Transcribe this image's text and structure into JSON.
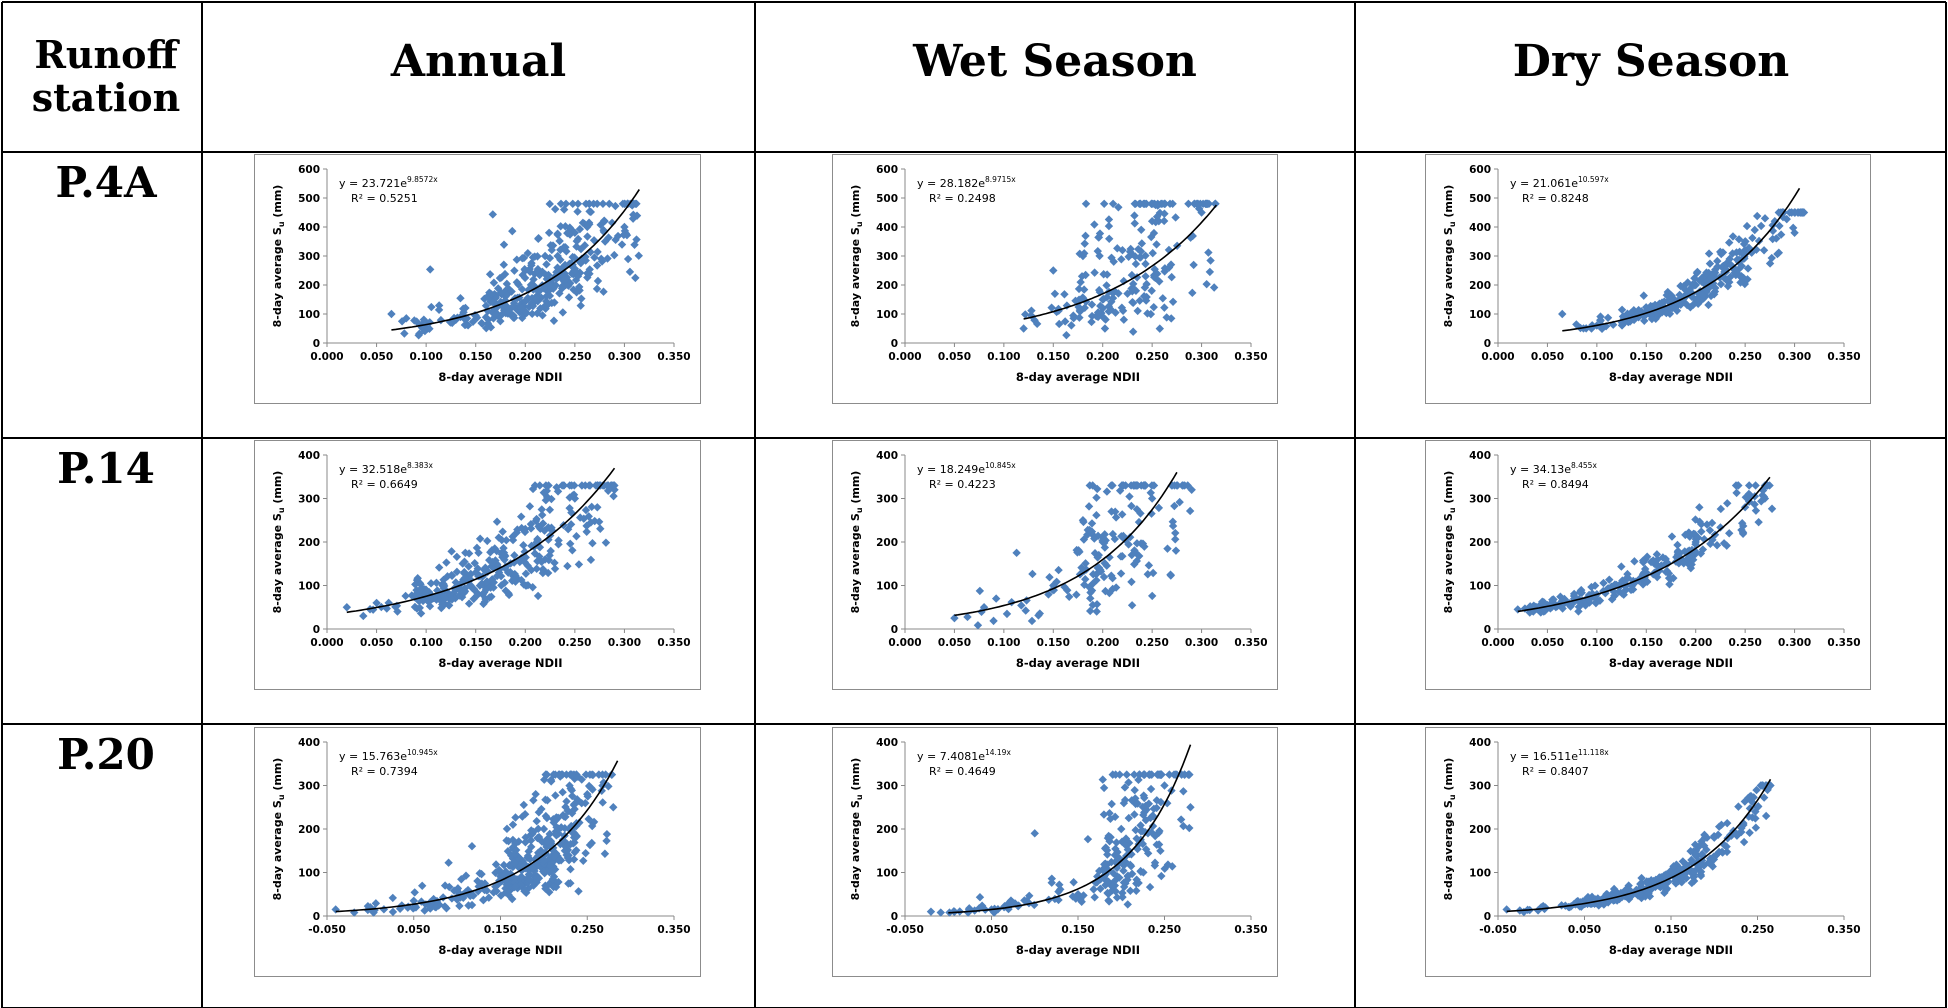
{
  "header": {
    "corner_line1": "Runoff",
    "corner_line2": "station",
    "columns": [
      "Annual",
      "Wet Season",
      "Dry Season"
    ]
  },
  "stations": [
    "P.4A",
    "P.14",
    "P.20"
  ],
  "colors": {
    "marker": "#4f81bd",
    "trend": "#000000",
    "grid_line": "#000000",
    "panel_border": "#8c8c8c"
  },
  "chart_data": [
    {
      "type": "scatter",
      "station": "P.4A",
      "season": "Annual",
      "xlabel": "8-day  average  NDII",
      "ylabel": "8-day  average  S_u (mm)",
      "xlim": [
        0,
        0.35
      ],
      "ylim": [
        0,
        600
      ],
      "xticks": [
        "0.000",
        "0.050",
        "0.100",
        "0.150",
        "0.200",
        "0.250",
        "0.300",
        "0.350"
      ],
      "yticks": [
        "0",
        "100",
        "200",
        "300",
        "400",
        "500",
        "600"
      ],
      "equation_prefix": "y = 23.721e",
      "equation_exp": "9.8572x",
      "r2": "R² = 0.5251",
      "trendline": {
        "a": 23.721,
        "b": 9.8572,
        "xrange": [
          0.065,
          0.315
        ]
      },
      "cloud": {
        "n": 360,
        "xrange": [
          0.065,
          0.315
        ],
        "x_center": 0.215,
        "ymax": 480,
        "spread": 0.36,
        "seed": 11
      },
      "points_sample": [
        [
          0.065,
          100
        ],
        [
          0.08,
          85
        ],
        [
          0.1,
          70
        ],
        [
          0.13,
          80
        ],
        [
          0.15,
          95
        ],
        [
          0.18,
          160
        ],
        [
          0.2,
          250
        ],
        [
          0.22,
          300
        ],
        [
          0.25,
          380
        ],
        [
          0.28,
          420
        ],
        [
          0.3,
          400
        ]
      ]
    },
    {
      "type": "scatter",
      "station": "P.4A",
      "season": "Wet Season",
      "xlabel": "8-day  average  NDII",
      "ylabel": "8-day  average  S_u (mm)",
      "xlim": [
        0,
        0.35
      ],
      "ylim": [
        0,
        600
      ],
      "xticks": [
        "0.000",
        "0.050",
        "0.100",
        "0.150",
        "0.200",
        "0.250",
        "0.300",
        "0.350"
      ],
      "yticks": [
        "0",
        "100",
        "200",
        "300",
        "400",
        "500",
        "600"
      ],
      "equation_prefix": "y = 28.182e",
      "equation_exp": "8.9715x",
      "r2": "R² = 0.2498",
      "trendline": {
        "a": 28.182,
        "b": 8.9715,
        "xrange": [
          0.12,
          0.315
        ]
      },
      "cloud": {
        "n": 210,
        "xrange": [
          0.12,
          0.315
        ],
        "x_center": 0.225,
        "ymax": 480,
        "spread": 0.6,
        "seed": 23
      },
      "points_sample": [
        [
          0.12,
          50
        ],
        [
          0.15,
          250
        ],
        [
          0.18,
          300
        ],
        [
          0.2,
          150
        ],
        [
          0.22,
          320
        ],
        [
          0.25,
          420
        ],
        [
          0.3,
          450
        ]
      ]
    },
    {
      "type": "scatter",
      "station": "P.4A",
      "season": "Dry Season",
      "xlabel": "8-day  average  NDII",
      "ylabel": "8-day  average  S_u (mm)",
      "xlim": [
        0,
        0.35
      ],
      "ylim": [
        0,
        600
      ],
      "xticks": [
        "0.000",
        "0.050",
        "0.100",
        "0.150",
        "0.200",
        "0.250",
        "0.300",
        "0.350"
      ],
      "yticks": [
        "0",
        "100",
        "200",
        "300",
        "400",
        "500",
        "600"
      ],
      "equation_prefix": "y = 21.061e",
      "equation_exp": "10.597x",
      "r2": "R² = 0.8248",
      "trendline": {
        "a": 21.061,
        "b": 10.597,
        "xrange": [
          0.065,
          0.305
        ]
      },
      "cloud": {
        "n": 300,
        "xrange": [
          0.065,
          0.31
        ],
        "x_center": 0.19,
        "ymax": 450,
        "spread": 0.16,
        "seed": 37
      },
      "points_sample": [
        [
          0.065,
          100
        ],
        [
          0.1,
          60
        ],
        [
          0.15,
          100
        ],
        [
          0.2,
          200
        ],
        [
          0.25,
          350
        ],
        [
          0.28,
          420
        ],
        [
          0.3,
          380
        ]
      ]
    },
    {
      "type": "scatter",
      "station": "P.14",
      "season": "Annual",
      "xlabel": "8-day  average  NDII",
      "ylabel": "8-day  average  S_u (mm)",
      "xlim": [
        0,
        0.35
      ],
      "ylim": [
        0,
        400
      ],
      "xticks": [
        "0.000",
        "0.050",
        "0.100",
        "0.150",
        "0.200",
        "0.250",
        "0.300",
        "0.350"
      ],
      "yticks": [
        "0",
        "100",
        "200",
        "300",
        "400"
      ],
      "equation_prefix": "y = 32.518e",
      "equation_exp": "8.383x",
      "r2": "R² = 0.6649",
      "trendline": {
        "a": 32.518,
        "b": 8.383,
        "xrange": [
          0.02,
          0.29
        ]
      },
      "cloud": {
        "n": 330,
        "xrange": [
          0.02,
          0.29
        ],
        "x_center": 0.16,
        "ymax": 330,
        "spread": 0.33,
        "seed": 41
      },
      "points_sample": [
        [
          0.02,
          50
        ],
        [
          0.05,
          60
        ],
        [
          0.1,
          90
        ],
        [
          0.15,
          130
        ],
        [
          0.2,
          230
        ],
        [
          0.25,
          300
        ],
        [
          0.29,
          320
        ]
      ]
    },
    {
      "type": "scatter",
      "station": "P.14",
      "season": "Wet Season",
      "xlabel": "8-day  average  NDII",
      "ylabel": "8-day  average  S_u (mm)",
      "xlim": [
        0,
        0.35
      ],
      "ylim": [
        0,
        400
      ],
      "xticks": [
        "0.000",
        "0.050",
        "0.100",
        "0.150",
        "0.200",
        "0.250",
        "0.300",
        "0.350"
      ],
      "yticks": [
        "0",
        "100",
        "200",
        "300",
        "400"
      ],
      "equation_prefix": "y = 18.249e",
      "equation_exp": "10.845x",
      "r2": "R² = 0.4223",
      "trendline": {
        "a": 18.249,
        "b": 10.845,
        "xrange": [
          0.05,
          0.275
        ]
      },
      "cloud": {
        "n": 170,
        "xrange": [
          0.05,
          0.29
        ],
        "x_center": 0.215,
        "ymax": 330,
        "spread": 0.55,
        "seed": 53
      },
      "points_sample": [
        [
          0.05,
          25
        ],
        [
          0.08,
          50
        ],
        [
          0.15,
          100
        ],
        [
          0.18,
          250
        ],
        [
          0.2,
          200
        ],
        [
          0.25,
          300
        ],
        [
          0.29,
          320
        ]
      ]
    },
    {
      "type": "scatter",
      "station": "P.14",
      "season": "Dry Season",
      "xlabel": "8-day  average  NDII",
      "ylabel": "8-day  average  S_u (mm)",
      "xlim": [
        0,
        0.35
      ],
      "ylim": [
        0,
        400
      ],
      "xticks": [
        "0.000",
        "0.050",
        "0.100",
        "0.150",
        "0.200",
        "0.250",
        "0.300",
        "0.350"
      ],
      "yticks": [
        "0",
        "100",
        "200",
        "300",
        "400"
      ],
      "equation_prefix": "y = 34.13e",
      "equation_exp": "8.455x",
      "r2": "R² = 0.8494",
      "trendline": {
        "a": 34.13,
        "b": 8.455,
        "xrange": [
          0.02,
          0.275
        ]
      },
      "cloud": {
        "n": 260,
        "xrange": [
          0.02,
          0.28
        ],
        "x_center": 0.12,
        "ymax": 330,
        "spread": 0.15,
        "seed": 67
      },
      "points_sample": [
        [
          0.02,
          45
        ],
        [
          0.05,
          55
        ],
        [
          0.1,
          80
        ],
        [
          0.15,
          130
        ],
        [
          0.2,
          200
        ],
        [
          0.25,
          280
        ],
        [
          0.27,
          300
        ]
      ]
    },
    {
      "type": "scatter",
      "station": "P.20",
      "season": "Annual",
      "xlabel": "8-day  average  NDII",
      "ylabel": "8-day  average  S_u (mm)",
      "xlim": [
        -0.05,
        0.35
      ],
      "ylim": [
        0,
        400
      ],
      "xticks": [
        "-0.050",
        "0.050",
        "0.150",
        "0.250",
        "0.350"
      ],
      "yticks": [
        "0",
        "100",
        "200",
        "300",
        "400"
      ],
      "equation_prefix": "y = 15.763e",
      "equation_exp": "10.945x",
      "r2": "R² = 0.7394",
      "trendline": {
        "a": 15.763,
        "b": 10.945,
        "xrange": [
          -0.04,
          0.285
        ]
      },
      "cloud": {
        "n": 420,
        "xrange": [
          -0.04,
          0.28
        ],
        "x_center": 0.2,
        "ymax": 325,
        "spread": 0.38,
        "seed": 71
      },
      "points_sample": [
        [
          -0.04,
          15
        ],
        [
          0.0,
          20
        ],
        [
          0.05,
          35
        ],
        [
          0.1,
          60
        ],
        [
          0.15,
          100
        ],
        [
          0.2,
          200
        ],
        [
          0.25,
          280
        ],
        [
          0.28,
          250
        ]
      ]
    },
    {
      "type": "scatter",
      "station": "P.20",
      "season": "Wet Season",
      "xlabel": "8-day  average  NDII",
      "ylabel": "8-day  average  S_u (mm)",
      "xlim": [
        -0.05,
        0.35
      ],
      "ylim": [
        0,
        400
      ],
      "xticks": [
        "-0.050",
        "0.050",
        "0.150",
        "0.250",
        "0.350"
      ],
      "yticks": [
        "0",
        "100",
        "200",
        "300",
        "400"
      ],
      "equation_prefix": "y = 7.4081e",
      "equation_exp": "14.19x",
      "r2": "R² = 0.4649",
      "trendline": {
        "a": 7.4081,
        "b": 14.19,
        "xrange": [
          0.0,
          0.28
        ]
      },
      "cloud": {
        "n": 240,
        "xrange": [
          -0.02,
          0.28
        ],
        "x_center": 0.215,
        "ymax": 325,
        "spread": 0.6,
        "seed": 83
      },
      "points_sample": [
        [
          -0.02,
          10
        ],
        [
          0.05,
          15
        ],
        [
          0.1,
          190
        ],
        [
          0.15,
          50
        ],
        [
          0.2,
          200
        ],
        [
          0.25,
          300
        ],
        [
          0.28,
          250
        ]
      ]
    },
    {
      "type": "scatter",
      "station": "P.20",
      "season": "Dry Season",
      "xlabel": "8-day  average  NDII",
      "ylabel": "8-day  average  S_u (mm)",
      "xlim": [
        -0.05,
        0.35
      ],
      "ylim": [
        0,
        400
      ],
      "xticks": [
        "-0.050",
        "0.050",
        "0.150",
        "0.250",
        "0.350"
      ],
      "yticks": [
        "0",
        "100",
        "200",
        "300",
        "400"
      ],
      "equation_prefix": "y = 16.511e",
      "equation_exp": "11.118x",
      "r2": "R² = 0.8407",
      "trendline": {
        "a": 16.511,
        "b": 11.118,
        "xrange": [
          -0.04,
          0.265
        ]
      },
      "cloud": {
        "n": 320,
        "xrange": [
          -0.04,
          0.265
        ],
        "x_center": 0.12,
        "ymax": 300,
        "spread": 0.16,
        "seed": 97
      },
      "points_sample": [
        [
          -0.04,
          15
        ],
        [
          0.0,
          20
        ],
        [
          0.05,
          30
        ],
        [
          0.1,
          55
        ],
        [
          0.15,
          100
        ],
        [
          0.2,
          180
        ],
        [
          0.25,
          250
        ],
        [
          0.26,
          230
        ]
      ]
    }
  ]
}
